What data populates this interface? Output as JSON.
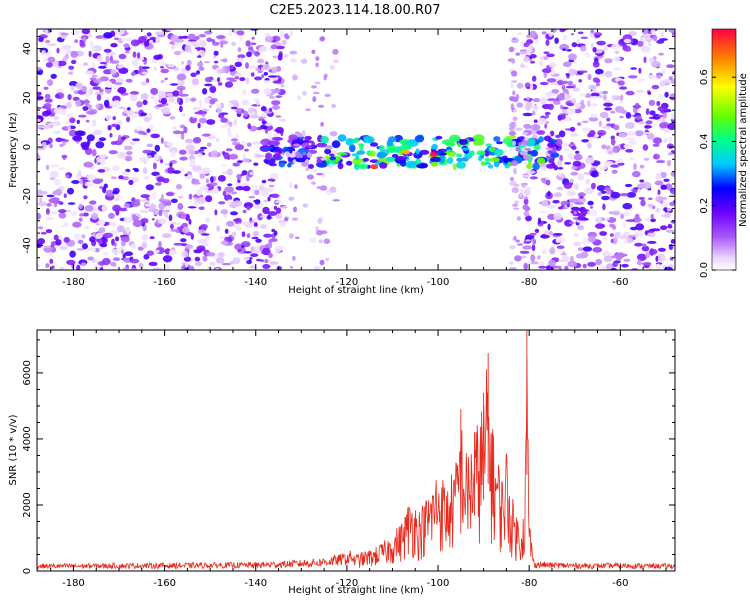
{
  "figure": {
    "title": "C2E5.2023.114.18.00.R07"
  },
  "chart_data": [
    {
      "type": "heatmap",
      "title": "C2E5.2023.114.18.00.R07",
      "xlabel": "Height of straight line (km)",
      "ylabel": "Frequency (Hz)",
      "xlim": [
        -188,
        -48
      ],
      "ylim": [
        -50,
        48
      ],
      "xticks": [
        -180,
        -160,
        -140,
        -120,
        -100,
        -80,
        -60
      ],
      "yticks": [
        -40,
        -20,
        0,
        20,
        40
      ],
      "grid": false,
      "regions": [
        {
          "name": "background-noise-left",
          "x": [
            -188,
            -134
          ],
          "freq": [
            -50,
            48
          ],
          "amplitude": 0.1
        },
        {
          "name": "low-signal-gap",
          "x": [
            -122,
            -81
          ],
          "freq": [
            -50,
            48
          ],
          "amplitude": 0.0
        },
        {
          "name": "background-noise-right",
          "x": [
            -81,
            -48
          ],
          "freq": [
            -50,
            48
          ],
          "amplitude": 0.1
        },
        {
          "name": "signal-band",
          "x": [
            -138,
            -73
          ],
          "freq": [
            -8,
            4
          ],
          "amplitude": 0.35
        }
      ],
      "peaks": [
        {
          "x": -114,
          "freq": -8,
          "amplitude": 0.72
        },
        {
          "x": -107,
          "freq": -2,
          "amplitude": 0.62
        },
        {
          "x": -101,
          "freq": -3,
          "amplitude": 0.74
        },
        {
          "x": -97,
          "freq": -3,
          "amplitude": 0.5
        }
      ],
      "colorbar": {
        "label": "Normalized spectral amplitude",
        "range": [
          0,
          0.75
        ],
        "ticks": [
          "0.0",
          "0.2",
          "0.4",
          "0.6"
        ],
        "tick_values": [
          0.0,
          0.2,
          0.4,
          0.6
        ],
        "colors": [
          "#ffffff",
          "#e9d5ff",
          "#a855f7",
          "#6a00ff",
          "#0000ff",
          "#00ffff",
          "#00ff55",
          "#aaff00",
          "#ffff00",
          "#ff8000",
          "#ff0040"
        ]
      }
    },
    {
      "type": "line",
      "xlabel": "Height of straight line (km)",
      "ylabel": "SNR (10 * v/v)",
      "xlim": [
        -188,
        -48
      ],
      "ylim": [
        0,
        7300
      ],
      "xticks": [
        -180,
        -160,
        -140,
        -120,
        -100,
        -80,
        -60
      ],
      "yticks": [
        0,
        2000,
        4000,
        6000
      ],
      "grid": false,
      "series": [
        {
          "name": "SNR",
          "color": "#e8291c",
          "x": [
            -188,
            -175,
            -160,
            -150,
            -140,
            -132,
            -126,
            -122,
            -118,
            -114,
            -111,
            -108,
            -106,
            -104,
            -102,
            -100,
            -98,
            -96,
            -95,
            -94,
            -92,
            -90,
            -89,
            -88,
            -87,
            -86,
            -85,
            -84,
            -83,
            -82,
            -81,
            -80.5,
            -80,
            -79,
            -75,
            -70,
            -65,
            -60,
            -55,
            -48
          ],
          "y": [
            170,
            180,
            190,
            200,
            210,
            250,
            300,
            380,
            520,
            700,
            1000,
            1500,
            2300,
            1900,
            2400,
            3200,
            2600,
            3400,
            4900,
            3600,
            4200,
            5400,
            6600,
            4300,
            3700,
            2900,
            3900,
            2400,
            1900,
            1500,
            1900,
            7300,
            1800,
            240,
            200,
            190,
            180,
            190,
            180,
            170
          ]
        }
      ]
    }
  ]
}
